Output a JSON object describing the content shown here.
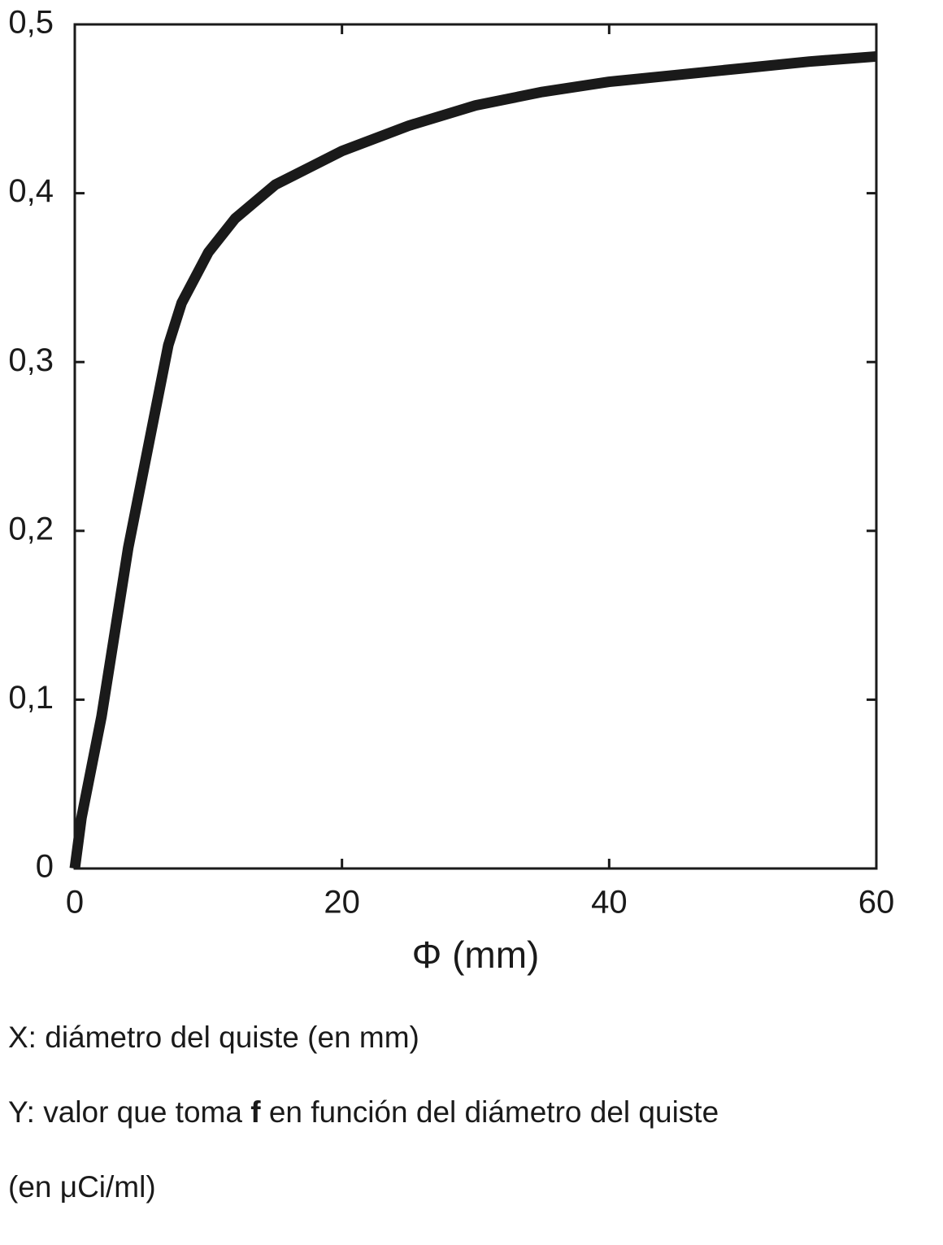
{
  "chart_data": {
    "type": "line",
    "x_label": "Φ (mm)",
    "x": [
      0,
      0.5,
      2,
      4,
      6,
      7,
      8,
      10,
      12,
      15,
      20,
      25,
      30,
      35,
      40,
      45,
      50,
      55,
      60
    ],
    "series": [
      {
        "color": "#1a1a1a",
        "values": [
          0,
          0.03,
          0.09,
          0.19,
          0.27,
          0.31,
          0.335,
          0.365,
          0.385,
          0.405,
          0.425,
          0.44,
          0.452,
          0.46,
          0.466,
          0.47,
          0.474,
          0.478,
          0.481
        ]
      }
    ],
    "xlim": [
      0,
      60
    ],
    "xticks": [
      0,
      20,
      40,
      60
    ],
    "ylim": [
      0,
      0.5
    ],
    "yticks": [
      0,
      {
        "value": 0.1,
        "label": "0,1"
      },
      {
        "value": 0.2,
        "label": "0,2"
      },
      {
        "value": 0.3,
        "label": "0,3"
      },
      {
        "value": 0.4,
        "label": "0,4"
      },
      {
        "value": 0.5,
        "label": "0,5"
      }
    ],
    "grid": false,
    "captions": [
      [
        "X: diámetro del quiste (en mm)"
      ],
      [
        "Y: valor que toma ",
        "f",
        " en función del diámetro del quiste"
      ],
      [
        "(en μCi/ml)"
      ]
    ]
  }
}
